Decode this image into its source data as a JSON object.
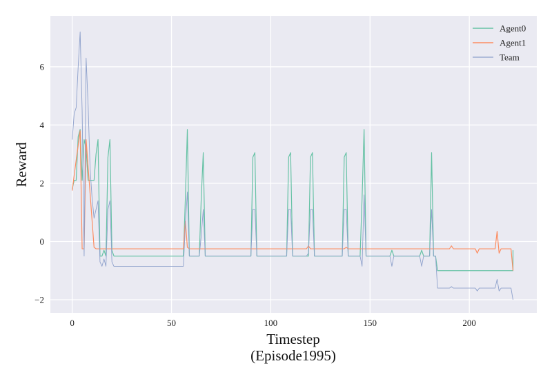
{
  "chart_data": {
    "type": "line",
    "title": "",
    "xlabel": "Timestep",
    "xlabel_sub": "(Episode1995)",
    "ylabel": "Reward",
    "xlim": [
      -11,
      234
    ],
    "ylim": [
      -2.45,
      7.75
    ],
    "xticks": [
      0,
      50,
      100,
      150,
      200
    ],
    "yticks": [
      -2,
      0,
      2,
      4,
      6
    ],
    "ytick_labels": [
      "−2",
      "0",
      "2",
      "4",
      "6"
    ],
    "grid": true,
    "legend_position": "top-right",
    "series": [
      {
        "name": "Agent0",
        "color": "#66c2a5",
        "width": 1.2,
        "points": [
          [
            0,
            1.8
          ],
          [
            1,
            2.1
          ],
          [
            2,
            2.1
          ],
          [
            3,
            3.6
          ],
          [
            4,
            3.85
          ],
          [
            5,
            2.1
          ],
          [
            6,
            3.5
          ],
          [
            7,
            3.2
          ],
          [
            8,
            2.1
          ],
          [
            9,
            2.1
          ],
          [
            10,
            2.1
          ],
          [
            11,
            2.1
          ],
          [
            12,
            3.0
          ],
          [
            13,
            3.5
          ],
          [
            14,
            -0.5
          ],
          [
            15,
            -0.5
          ],
          [
            16,
            -0.3
          ],
          [
            17,
            -0.5
          ],
          [
            18,
            2.9
          ],
          [
            19,
            3.5
          ],
          [
            20,
            -0.3
          ],
          [
            21,
            -0.5
          ],
          [
            55,
            -0.5
          ],
          [
            56,
            -0.5
          ],
          [
            57,
            1.5
          ],
          [
            58,
            3.85
          ],
          [
            59,
            -0.5
          ],
          [
            64,
            -0.5
          ],
          [
            65,
            1.5
          ],
          [
            66,
            3.05
          ],
          [
            67,
            -0.5
          ],
          [
            90,
            -0.5
          ],
          [
            91,
            2.9
          ],
          [
            92,
            3.05
          ],
          [
            93,
            -0.5
          ],
          [
            108,
            -0.5
          ],
          [
            109,
            2.9
          ],
          [
            110,
            3.05
          ],
          [
            111,
            -0.5
          ],
          [
            119,
            -0.5
          ],
          [
            120,
            2.9
          ],
          [
            121,
            3.05
          ],
          [
            122,
            -0.5
          ],
          [
            136,
            -0.5
          ],
          [
            137,
            2.9
          ],
          [
            138,
            3.05
          ],
          [
            139,
            -0.5
          ],
          [
            145,
            -0.5
          ],
          [
            146,
            1.5
          ],
          [
            147,
            3.85
          ],
          [
            148,
            -0.5
          ],
          [
            160,
            -0.5
          ],
          [
            161,
            -0.3
          ],
          [
            162,
            -0.5
          ],
          [
            175,
            -0.5
          ],
          [
            176,
            -0.3
          ],
          [
            177,
            -0.5
          ],
          [
            180,
            -0.5
          ],
          [
            181,
            3.05
          ],
          [
            182,
            -0.5
          ],
          [
            183,
            -0.5
          ],
          [
            184,
            -1.0
          ],
          [
            222,
            -1.0
          ],
          [
            222,
            -0.3
          ]
        ]
      },
      {
        "name": "Agent1",
        "color": "#fc8d62",
        "width": 1.2,
        "points": [
          [
            0,
            1.75
          ],
          [
            2,
            2.8
          ],
          [
            4,
            3.8
          ],
          [
            5,
            -0.25
          ],
          [
            6,
            -0.25
          ],
          [
            7,
            3.5
          ],
          [
            11,
            -0.2
          ],
          [
            12,
            -0.25
          ],
          [
            56,
            -0.25
          ],
          [
            57,
            0.7
          ],
          [
            58,
            -0.2
          ],
          [
            59,
            -0.25
          ],
          [
            118,
            -0.25
          ],
          [
            119,
            -0.15
          ],
          [
            120,
            -0.25
          ],
          [
            137,
            -0.25
          ],
          [
            138,
            -0.2
          ],
          [
            139,
            -0.25
          ],
          [
            190,
            -0.25
          ],
          [
            191,
            -0.15
          ],
          [
            192,
            -0.25
          ],
          [
            203,
            -0.25
          ],
          [
            204,
            -0.4
          ],
          [
            205,
            -0.25
          ],
          [
            213,
            -0.25
          ],
          [
            214,
            0.35
          ],
          [
            215,
            -0.4
          ],
          [
            216,
            -0.25
          ],
          [
            221,
            -0.25
          ],
          [
            222,
            -1.0
          ]
        ]
      },
      {
        "name": "Team",
        "color": "#8da0cb",
        "width": 0.9,
        "points": [
          [
            0,
            3.5
          ],
          [
            1,
            4.4
          ],
          [
            2,
            4.6
          ],
          [
            3,
            6.0
          ],
          [
            4,
            7.2
          ],
          [
            5,
            4.5
          ],
          [
            6,
            -0.5
          ],
          [
            7,
            6.3
          ],
          [
            8,
            4.7
          ],
          [
            9,
            2.5
          ],
          [
            10,
            1.5
          ],
          [
            11,
            0.8
          ],
          [
            12,
            1.1
          ],
          [
            13,
            1.4
          ],
          [
            14,
            -0.7
          ],
          [
            15,
            -0.85
          ],
          [
            16,
            -0.6
          ],
          [
            17,
            -0.85
          ],
          [
            18,
            1.1
          ],
          [
            19,
            1.4
          ],
          [
            20,
            -0.7
          ],
          [
            21,
            -0.85
          ],
          [
            56,
            -0.85
          ],
          [
            57,
            0.6
          ],
          [
            58,
            1.7
          ],
          [
            59,
            -0.5
          ],
          [
            64,
            -0.5
          ],
          [
            65,
            0.2
          ],
          [
            66,
            1.1
          ],
          [
            67,
            -0.5
          ],
          [
            90,
            -0.5
          ],
          [
            91,
            1.1
          ],
          [
            92,
            1.1
          ],
          [
            93,
            -0.5
          ],
          [
            108,
            -0.5
          ],
          [
            109,
            1.1
          ],
          [
            110,
            1.1
          ],
          [
            111,
            -0.5
          ],
          [
            118,
            -0.5
          ],
          [
            119,
            -0.4
          ],
          [
            120,
            1.1
          ],
          [
            121,
            1.1
          ],
          [
            122,
            -0.5
          ],
          [
            136,
            -0.5
          ],
          [
            137,
            1.1
          ],
          [
            138,
            1.1
          ],
          [
            139,
            -0.5
          ],
          [
            145,
            -0.5
          ],
          [
            146,
            -0.85
          ],
          [
            147,
            1.6
          ],
          [
            148,
            -0.5
          ],
          [
            160,
            -0.5
          ],
          [
            161,
            -0.85
          ],
          [
            162,
            -0.5
          ],
          [
            175,
            -0.5
          ],
          [
            176,
            -0.85
          ],
          [
            177,
            -0.5
          ],
          [
            180,
            -0.5
          ],
          [
            181,
            1.1
          ],
          [
            182,
            -0.5
          ],
          [
            183,
            -0.5
          ],
          [
            184,
            -1.6
          ],
          [
            190,
            -1.6
          ],
          [
            191,
            -1.55
          ],
          [
            192,
            -1.6
          ],
          [
            203,
            -1.6
          ],
          [
            204,
            -1.7
          ],
          [
            205,
            -1.6
          ],
          [
            213,
            -1.6
          ],
          [
            214,
            -1.3
          ],
          [
            215,
            -1.7
          ],
          [
            216,
            -1.6
          ],
          [
            221,
            -1.6
          ],
          [
            222,
            -2.0
          ]
        ]
      }
    ]
  }
}
